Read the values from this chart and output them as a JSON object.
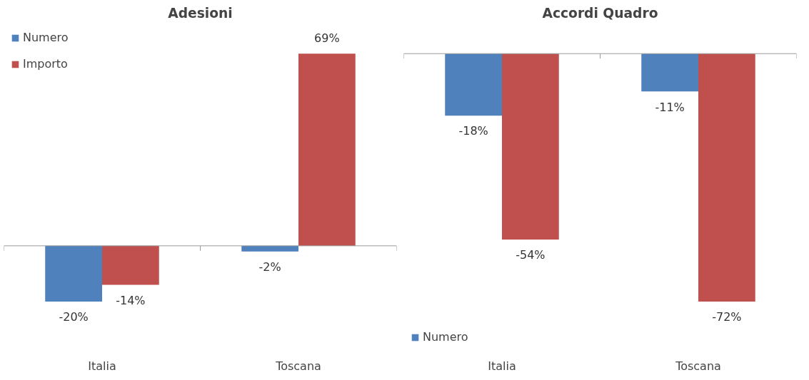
{
  "chart_data": [
    {
      "type": "bar",
      "title": "Adesioni",
      "categories": [
        "Italia",
        "Toscana"
      ],
      "legend": "top left",
      "grid": false,
      "series": [
        {
          "name": "Numero",
          "color": "#4f81bd",
          "values": [
            -20,
            -2
          ],
          "value_labels": [
            "-20%",
            "-2%"
          ]
        },
        {
          "name": "Importo",
          "color": "#c0504d",
          "values": [
            -14,
            69
          ],
          "value_labels": [
            "-14%",
            "69%"
          ]
        }
      ]
    },
    {
      "type": "bar",
      "title": "Accordi Quadro",
      "categories": [
        "Italia",
        "Toscana"
      ],
      "legend": "bottom left",
      "grid": false,
      "series": [
        {
          "name": "Numero",
          "color": "#4f81bd",
          "values": [
            -18,
            -11
          ],
          "value_labels": [
            "-18%",
            "-11%"
          ]
        },
        {
          "color": "#c0504d",
          "values": [
            -54,
            -72
          ],
          "value_labels": [
            "-54%",
            "-72%"
          ]
        }
      ]
    }
  ]
}
